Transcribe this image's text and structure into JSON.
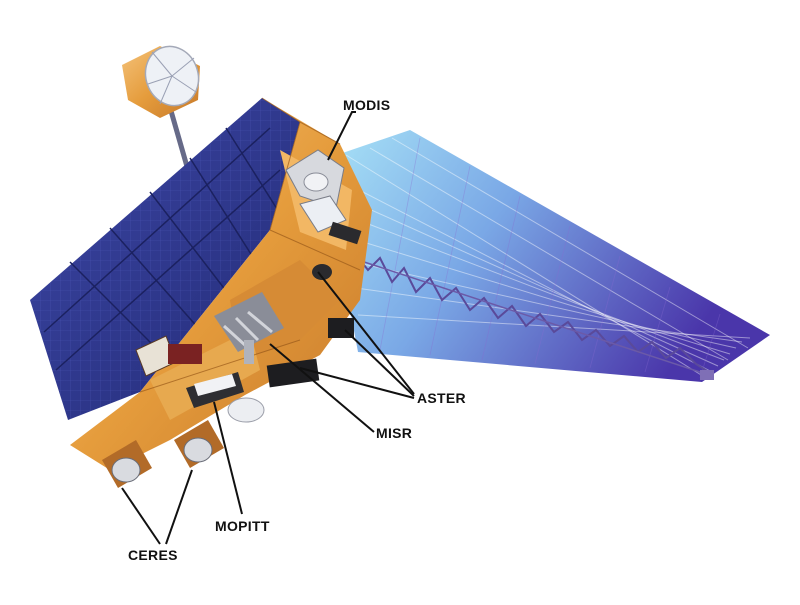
{
  "labels": {
    "modis": "MODIS",
    "aster": "ASTER",
    "misr": "MISR",
    "mopitt": "MOPITT",
    "ceres": "CERES"
  },
  "colors": {
    "panel_blue": "#2f3a8c",
    "panel_blue_light": "#4a56b8",
    "bus_orange": "#e9a446",
    "bus_shadow": "#b9701f",
    "solar_array_start": "#8fd3f0",
    "solar_array_end": "#4f3fb0",
    "leader_line": "#111111"
  }
}
